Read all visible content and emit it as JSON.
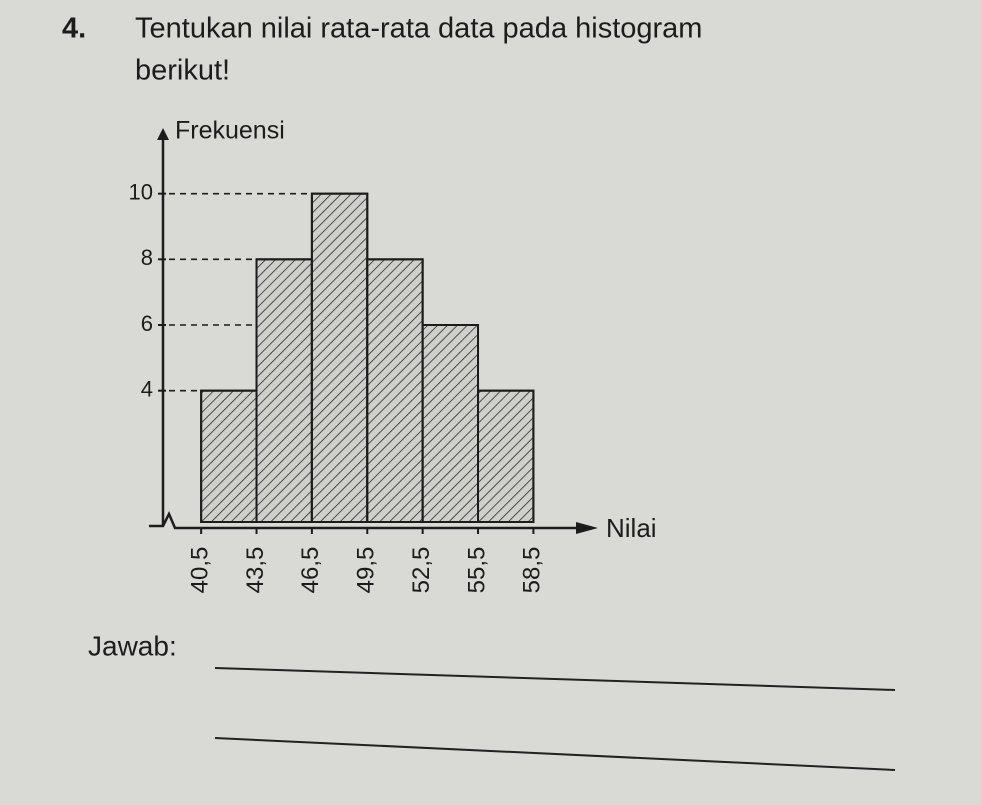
{
  "question": {
    "number": "4.",
    "lines": [
      "Tentukan nilai rata-rata data pada histogram",
      "berikut!"
    ]
  },
  "chart_data": {
    "type": "histogram",
    "ylabel": "Frekuensi",
    "xlabel": "Nilai",
    "bins": [
      40.5,
      43.5,
      46.5,
      49.5,
      52.5,
      55.5,
      58.5
    ],
    "values": [
      4,
      8,
      10,
      8,
      6,
      4
    ],
    "color": "#cfcfcb",
    "hatch": true,
    "xlim": [
      38,
      62
    ],
    "ylim": [
      0,
      12
    ],
    "xticks": [
      {
        "value": 40.5,
        "label": "40,5"
      },
      {
        "value": 43.5,
        "label": "43,5"
      },
      {
        "value": 46.5,
        "label": "46,5"
      },
      {
        "value": 49.5,
        "label": "49,5"
      },
      {
        "value": 52.5,
        "label": "52,5"
      },
      {
        "value": 55.5,
        "label": "55,5"
      },
      {
        "value": 58.5,
        "label": "58,5"
      }
    ],
    "yticks": [
      4,
      6,
      8,
      10
    ]
  },
  "answer_label": "Jawab:"
}
